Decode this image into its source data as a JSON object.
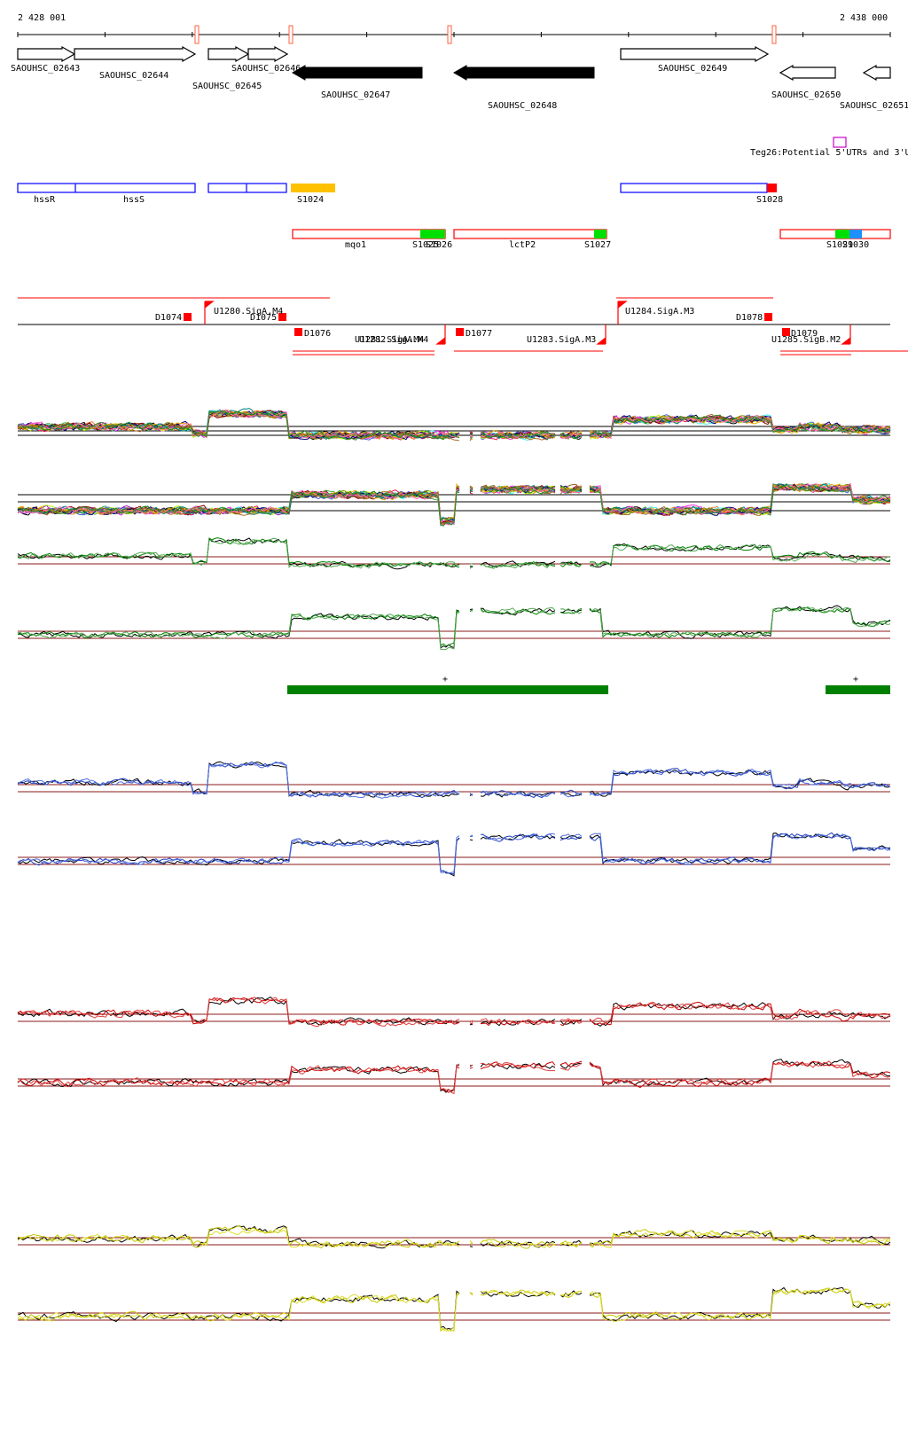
{
  "coords": {
    "start": "2 428 001",
    "end": "2 438 000"
  },
  "genes": [
    {
      "id": "g1",
      "name": "SAOUHSC_02643",
      "strand": "+",
      "fill": "outline"
    },
    {
      "id": "g2",
      "name": "SAOUHSC_02644",
      "strand": "+",
      "fill": "outline"
    },
    {
      "id": "g3",
      "name": "SAOUHSC_02645",
      "strand": "+",
      "fill": "outline"
    },
    {
      "id": "g4",
      "name": "SAOUHSC_02646",
      "strand": "+",
      "fill": "outline"
    },
    {
      "id": "g5",
      "name": "SAOUHSC_02647",
      "strand": "-",
      "fill": "solid"
    },
    {
      "id": "g6",
      "name": "SAOUHSC_02648",
      "strand": "-",
      "fill": "solid"
    },
    {
      "id": "g7",
      "name": "SAOUHSC_02649",
      "strand": "+",
      "fill": "outline"
    },
    {
      "id": "g8",
      "name": "SAOUHSC_02650",
      "strand": "-",
      "fill": "outline"
    },
    {
      "id": "g9",
      "name": "SAOUHSC_02651",
      "strand": "-",
      "fill": "outline"
    }
  ],
  "teg": {
    "label": "Teg26:Potential 5'UTRs and 3'U",
    "color": "#cc00cc"
  },
  "blue_genes": [
    "hssR",
    "hssS"
  ],
  "s_labels": {
    "s1024": "S1024",
    "s1028": "S1028",
    "s1025": "S1025",
    "s1026": "S1026",
    "s1027": "S1027",
    "s1029": "S1029",
    "s1030": "S1030"
  },
  "red_genes": [
    "mqo1",
    "lctP2"
  ],
  "d_labels": [
    "D1074",
    "D1075",
    "D1076",
    "D1077",
    "D1078",
    "D1079"
  ],
  "u_labels": [
    "U1280.SigA.M4",
    "U1281.SigA.M4",
    "U1282.SigA.M4",
    "U1283.SigA.M3",
    "U1284.SigA.M3",
    "U1285.SigB.M2"
  ],
  "operon_strand_label": "+",
  "colors": {
    "red": "#ff0000",
    "blue": "#0000ff",
    "orange": "#ffc000",
    "green": "#00e000",
    "lightblue": "#1e90ff",
    "darkgreen": "#008000",
    "trace_blue": "#1f3fbf",
    "trace_red": "#cc0000",
    "trace_yellow": "#d4d400"
  }
}
